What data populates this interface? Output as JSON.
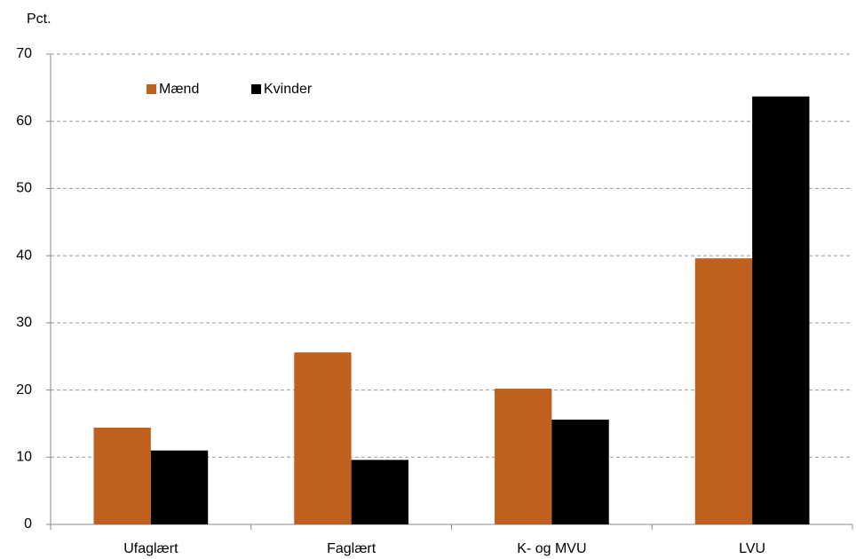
{
  "chart_data": {
    "type": "bar",
    "y_label": "Pct.",
    "categories": [
      "Ufaglært",
      "Faglært",
      "K- og MVU",
      "LVU"
    ],
    "series": [
      {
        "name": "Mænd",
        "color": "#c0601f",
        "values": [
          14.4,
          25.6,
          20.2,
          39.6
        ]
      },
      {
        "name": "Kvinder",
        "color": "#000000",
        "values": [
          11.0,
          9.6,
          15.6,
          63.7
        ]
      }
    ],
    "ylim": [
      0,
      70
    ],
    "yticks": [
      0,
      10,
      20,
      30,
      40,
      50,
      60,
      70
    ],
    "grid": true,
    "legend": "top-left"
  }
}
